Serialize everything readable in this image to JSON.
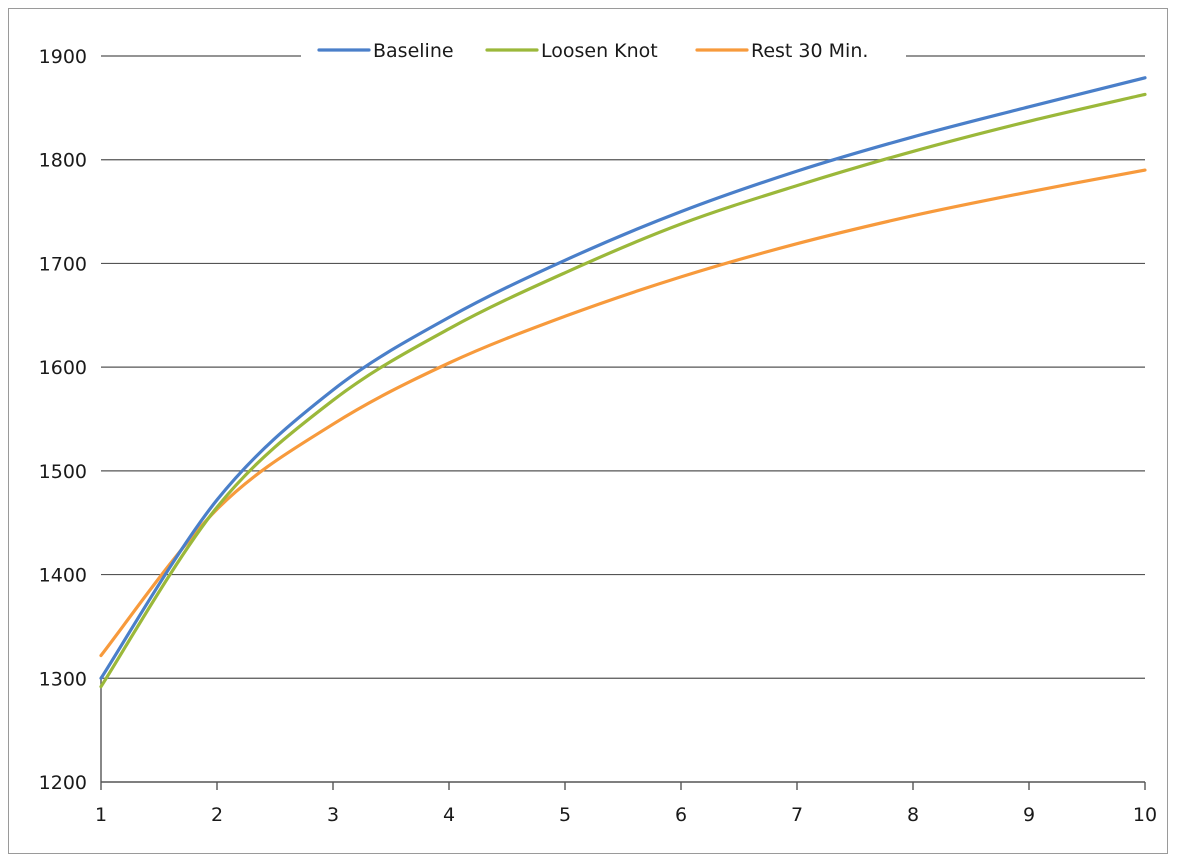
{
  "chart_data": {
    "type": "line",
    "title": "",
    "xlabel": "",
    "ylabel": "",
    "x": [
      1,
      2,
      3,
      4,
      5,
      6,
      7,
      8,
      9,
      10
    ],
    "xlim": [
      1,
      10
    ],
    "ylim": [
      1200,
      1900
    ],
    "yticks": [
      1200,
      1300,
      1400,
      1500,
      1600,
      1700,
      1800,
      1900
    ],
    "xticks": [
      1,
      2,
      3,
      4,
      5,
      6,
      7,
      8,
      9,
      10
    ],
    "grid": true,
    "legend_position": "top",
    "series": [
      {
        "name": "Baseline",
        "color": "#4a7fc9",
        "values": [
          1300,
          1472,
          1578,
          1648,
          1703,
          1750,
          1789,
          1822,
          1851,
          1879
        ]
      },
      {
        "name": "Loosen Knot",
        "color": "#9bb83a",
        "values": [
          1292,
          1465,
          1568,
          1637,
          1691,
          1738,
          1775,
          1808,
          1837,
          1863
        ]
      },
      {
        "name": "Rest 30 Min.",
        "color": "#f79a3c",
        "values": [
          1322,
          1463,
          1545,
          1604,
          1649,
          1687,
          1719,
          1746,
          1769,
          1790
        ]
      }
    ]
  }
}
